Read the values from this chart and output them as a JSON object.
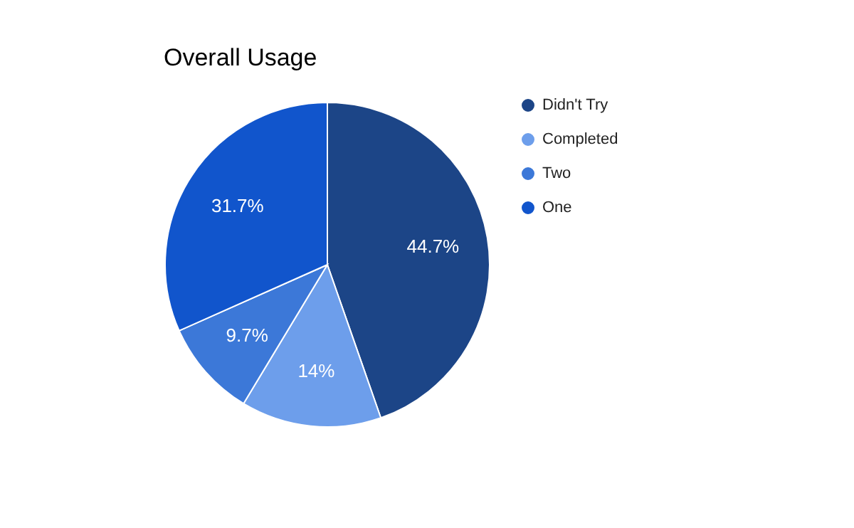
{
  "chart_data": {
    "type": "pie",
    "title": "Overall Usage",
    "categories": [
      "Didn't Try",
      "Completed",
      "Two",
      "One"
    ],
    "values": [
      44.7,
      14,
      9.7,
      31.7
    ],
    "value_labels": [
      "44.7%",
      "14%",
      "9.7%",
      "31.7%"
    ],
    "colors": [
      "#1c4587",
      "#6d9eeb",
      "#3c78d8",
      "#1155cc"
    ],
    "legend": "right"
  }
}
